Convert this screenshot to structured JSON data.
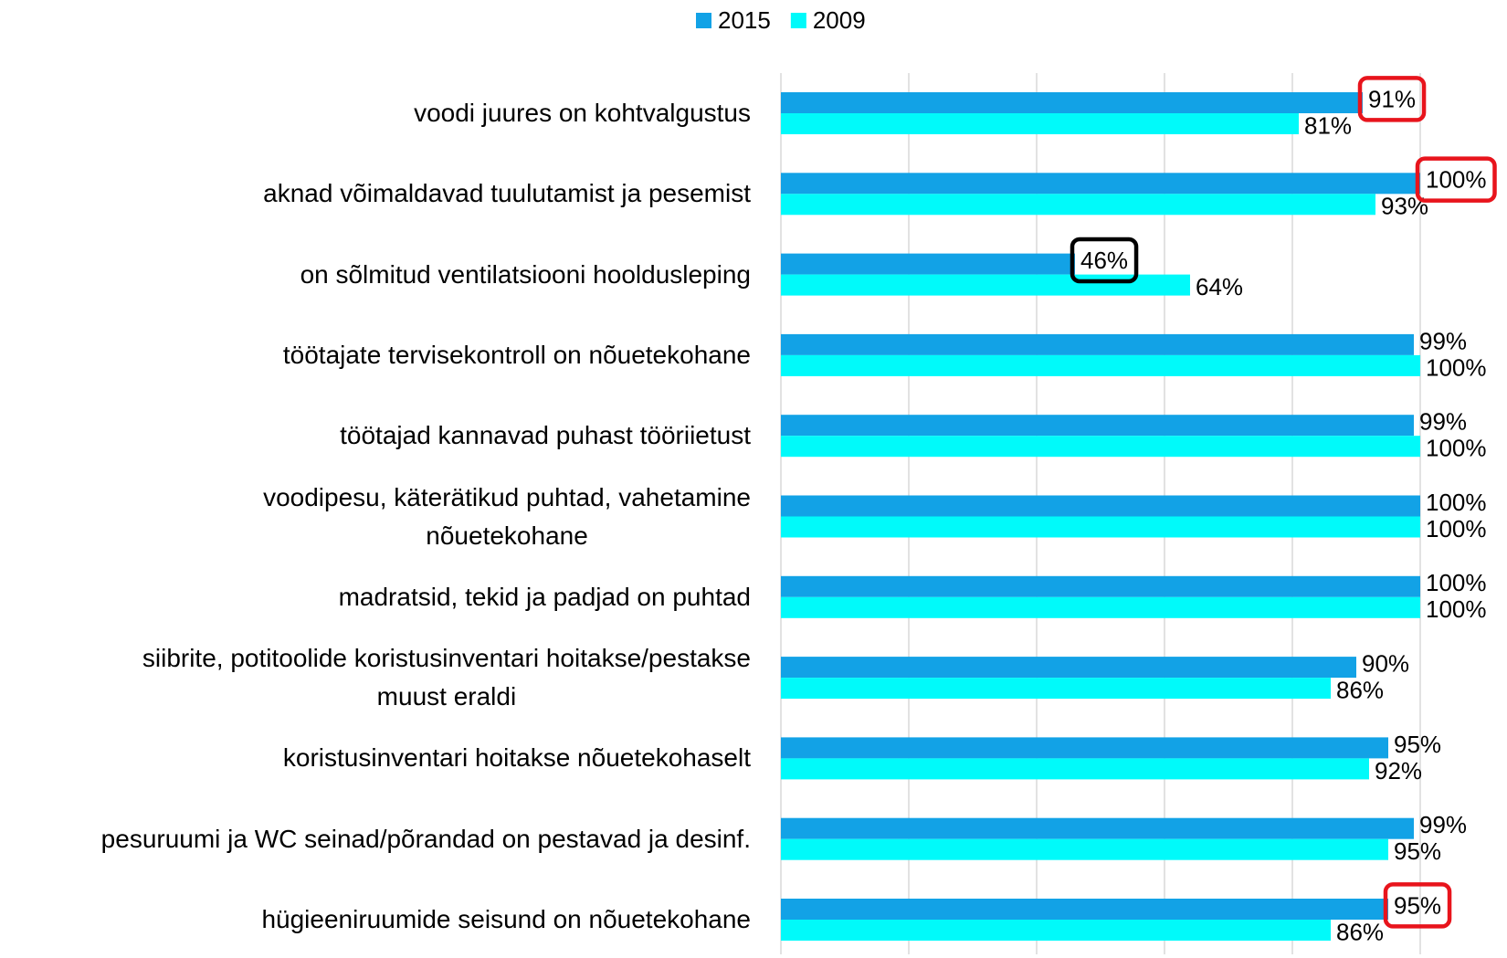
{
  "chart_data": {
    "type": "bar",
    "orientation": "horizontal",
    "categories": [
      "voodi juures on kohtvalgustus",
      "aknad võimaldavad tuulutamist ja pesemist",
      "on sõlmitud ventilatsiooni hooldusleping",
      "töötajate tervisekontroll on nõuetekohane",
      "töötajad kannavad puhast tööriietust",
      "voodipesu,  käterätikud puhtad, vahetamine\nnõuetekohane",
      "madratsid, tekid ja padjad  on puhtad",
      "siibrite, potitoolide koristusinventari hoitakse/pestakse\nmuust eraldi",
      "koristusinventari hoitakse nõuetekohaselt",
      "pesuruumi ja WC seinad/põrandad on pestavad ja desinf.",
      "hügieeniruumide seisund on nõuetekohane"
    ],
    "series": [
      {
        "name": "2015",
        "color": "#12a2e6",
        "values": [
          91,
          100,
          46,
          99,
          99,
          100,
          100,
          90,
          95,
          99,
          95
        ],
        "value_labels": [
          "91%",
          "100%",
          "46%",
          "99%",
          "99%",
          "100%",
          "100%",
          "90%",
          "95%",
          "99%",
          "95%"
        ]
      },
      {
        "name": "2009",
        "color": "#00fafa",
        "values": [
          81,
          93,
          64,
          100,
          100,
          100,
          100,
          86,
          92,
          95,
          86
        ],
        "value_labels": [
          "81%",
          "93%",
          "64%",
          "100%",
          "100%",
          "100%",
          "100%",
          "86%",
          "92%",
          "95%",
          "86%"
        ]
      }
    ],
    "xlim": [
      0,
      100
    ],
    "xticks": [
      0,
      20,
      40,
      60,
      80,
      100
    ],
    "grid": true,
    "legend": "top",
    "highlights": [
      {
        "series": 0,
        "index": 0,
        "color": "#e8141c"
      },
      {
        "series": 0,
        "index": 1,
        "color": "#e8141c"
      },
      {
        "series": 0,
        "index": 2,
        "color": "#000000"
      },
      {
        "series": 0,
        "index": 10,
        "color": "#e8141c"
      }
    ]
  }
}
